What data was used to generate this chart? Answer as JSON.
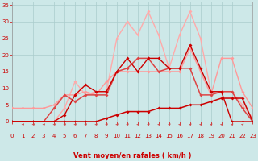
{
  "xlabel": "Vent moyen/en rafales ( km/h )",
  "background_color": "#cde8e8",
  "grid_color": "#aacccc",
  "xlim": [
    0,
    23
  ],
  "ylim": [
    0,
    36
  ],
  "x_ticks": [
    0,
    1,
    2,
    3,
    4,
    5,
    6,
    7,
    8,
    9,
    10,
    11,
    12,
    13,
    14,
    15,
    16,
    17,
    18,
    19,
    20,
    21,
    22,
    23
  ],
  "yticks": [
    0,
    5,
    10,
    15,
    20,
    25,
    30,
    35
  ],
  "lines": [
    {
      "x": [
        0,
        1,
        2,
        3,
        4,
        5,
        6,
        7,
        8,
        9,
        10,
        11,
        12,
        13,
        14,
        15,
        16,
        17,
        18,
        19,
        20,
        21,
        22,
        23
      ],
      "y": [
        0,
        0,
        0,
        0,
        0,
        0,
        0,
        0,
        0,
        1,
        2,
        3,
        3,
        3,
        4,
        4,
        4,
        5,
        5,
        6,
        7,
        7,
        7,
        0
      ],
      "color": "#cc0000",
      "lw": 1.1,
      "marker": "D",
      "ms": 2.0,
      "zorder": 6
    },
    {
      "x": [
        0,
        1,
        2,
        3,
        4,
        5,
        6,
        7,
        8,
        9,
        10,
        11,
        12,
        13,
        14,
        15,
        16,
        17,
        18,
        19,
        20,
        21,
        22,
        23
      ],
      "y": [
        0,
        0,
        0,
        0,
        0,
        2,
        8,
        11,
        9,
        9,
        15,
        19,
        15,
        19,
        19,
        16,
        16,
        23,
        16,
        9,
        9,
        0,
        0,
        0
      ],
      "color": "#cc0000",
      "lw": 1.0,
      "marker": "D",
      "ms": 2.0,
      "zorder": 5
    },
    {
      "x": [
        0,
        1,
        2,
        3,
        4,
        5,
        6,
        7,
        8,
        9,
        10,
        11,
        12,
        13,
        14,
        15,
        16,
        17,
        18,
        19,
        20,
        21,
        22,
        23
      ],
      "y": [
        4,
        4,
        4,
        4,
        5,
        8,
        8,
        9,
        8,
        12,
        15,
        15,
        15,
        15,
        15,
        15,
        15,
        22,
        15,
        8,
        19,
        19,
        9,
        4
      ],
      "color": "#ff9999",
      "lw": 1.0,
      "marker": "D",
      "ms": 2.0,
      "zorder": 3
    },
    {
      "x": [
        0,
        1,
        2,
        3,
        4,
        5,
        6,
        7,
        8,
        9,
        10,
        11,
        12,
        13,
        14,
        15,
        16,
        17,
        18,
        19,
        20,
        21,
        22,
        23
      ],
      "y": [
        0,
        0,
        0,
        0,
        0,
        4,
        12,
        8,
        9,
        9,
        25,
        30,
        26,
        33,
        26,
        16,
        26,
        33,
        25,
        9,
        9,
        9,
        5,
        1
      ],
      "color": "#ffaaaa",
      "lw": 1.0,
      "marker": "D",
      "ms": 2.0,
      "zorder": 2
    },
    {
      "x": [
        0,
        1,
        2,
        3,
        4,
        5,
        6,
        7,
        8,
        9,
        10,
        11,
        12,
        13,
        14,
        15,
        16,
        17,
        18,
        19,
        20,
        21,
        22,
        23
      ],
      "y": [
        0,
        0,
        0,
        0,
        4,
        8,
        6,
        8,
        8,
        8,
        15,
        16,
        19,
        19,
        15,
        16,
        16,
        16,
        8,
        8,
        9,
        9,
        4,
        0
      ],
      "color": "#dd4444",
      "lw": 1.1,
      "marker": "D",
      "ms": 2.0,
      "zorder": 4
    }
  ],
  "arrow_color": "#cc4444",
  "tick_color": "#cc0000",
  "tick_fontsize": 5.0,
  "xlabel_fontsize": 6.0,
  "xlabel_color": "#cc0000"
}
